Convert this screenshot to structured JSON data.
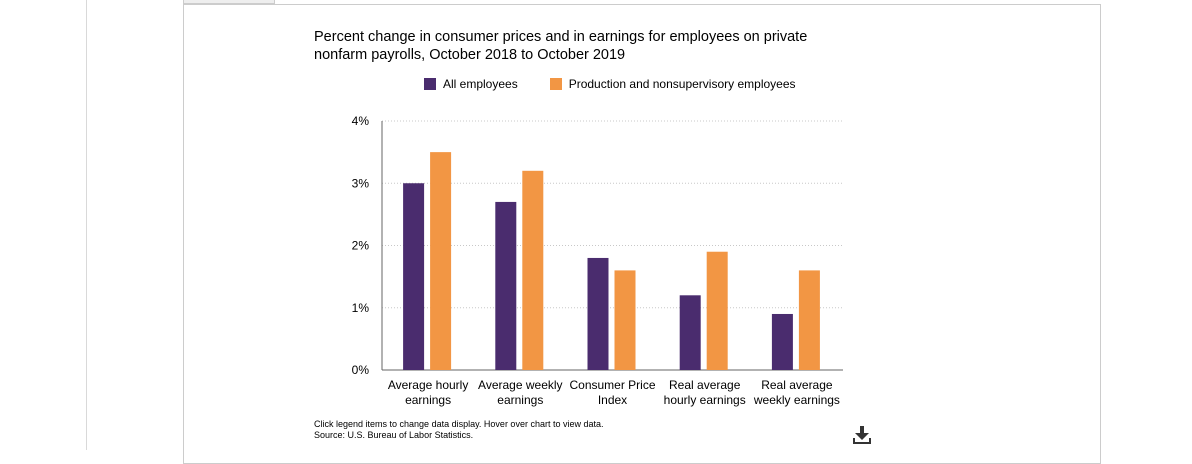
{
  "chart_data": {
    "type": "bar",
    "title": "Percent change in consumer prices and in earnings for employees on private nonfarm payrolls, October 2018 to October 2019",
    "categories": [
      [
        "Average hourly",
        "earnings"
      ],
      [
        "Average weekly",
        "earnings"
      ],
      [
        "Consumer Price",
        "Index"
      ],
      [
        "Real average",
        "hourly earnings"
      ],
      [
        "Real average",
        "weekly earnings"
      ]
    ],
    "series": [
      {
        "name": "All employees",
        "color": "#4a2c6e",
        "values": [
          3.0,
          2.7,
          1.8,
          1.2,
          0.9
        ]
      },
      {
        "name": "Production and nonsupervisory employees",
        "color": "#f29644",
        "values": [
          3.5,
          3.2,
          1.6,
          1.9,
          1.6
        ]
      }
    ],
    "ylim": [
      0,
      4
    ],
    "yticks": [
      {
        "value": 0,
        "label": "0%"
      },
      {
        "value": 1,
        "label": "1%"
      },
      {
        "value": 2,
        "label": "2%"
      },
      {
        "value": 3,
        "label": "3%"
      },
      {
        "value": 4,
        "label": "4%"
      }
    ],
    "grid": true,
    "legend_position": "top"
  },
  "footnote": {
    "line1": "Click legend items to change data display. Hover over chart to view data.",
    "line2": "Source: U.S. Bureau of Labor Statistics."
  },
  "icons": {
    "download": "download-icon"
  }
}
